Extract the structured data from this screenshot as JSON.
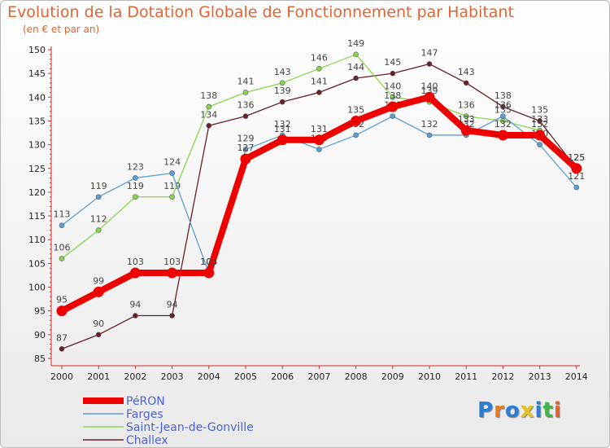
{
  "chart_data": {
    "type": "line",
    "title": "Evolution de la Dotation Globale de Fonctionnement par Habitant",
    "subtitle": "(en € et par an)",
    "x": [
      "2000",
      "2001",
      "2002",
      "2003",
      "2004",
      "2005",
      "2006",
      "2007",
      "2008",
      "2009",
      "2010",
      "2011",
      "2012",
      "2013",
      "2014"
    ],
    "yticks": [
      85,
      90,
      95,
      100,
      105,
      110,
      115,
      120,
      125,
      130,
      135,
      140,
      145,
      150
    ],
    "ylim": [
      85,
      150
    ],
    "grid": false,
    "legend_position": "bottom-left",
    "series": [
      {
        "name": "Challex",
        "color": "#6b1f24",
        "values": [
          87,
          90,
          94,
          94,
          134,
          136,
          139,
          141,
          144,
          145,
          147,
          143,
          138,
          135,
          125
        ]
      },
      {
        "name": "Saint-Jean-de-Gonville",
        "color": "#86d84e",
        "values": [
          106,
          112,
          119,
          119,
          138,
          141,
          143,
          146,
          149,
          140,
          139,
          136,
          135,
          133,
          125
        ]
      },
      {
        "name": "Farges",
        "color": "#5a9fd6",
        "values": [
          113,
          119,
          123,
          124,
          103,
          129,
          132,
          129,
          132,
          136,
          132,
          132,
          136,
          130,
          121
        ]
      },
      {
        "name": "PéRON",
        "color": "#ee0000",
        "values": [
          95,
          99,
          103,
          103,
          103,
          127,
          131,
          131,
          135,
          138,
          140,
          133,
          132,
          132,
          125
        ]
      }
    ]
  },
  "logo": {
    "text": "Proxiti",
    "letters": [
      "P",
      "r",
      "o",
      "x",
      "i",
      "t",
      "i"
    ],
    "colors": [
      "#2a7fd4",
      "#e57a1c",
      "#2a7fd4",
      "#e5c21c",
      "#2a7fd4",
      "#44b34a",
      "#e5632f"
    ]
  }
}
